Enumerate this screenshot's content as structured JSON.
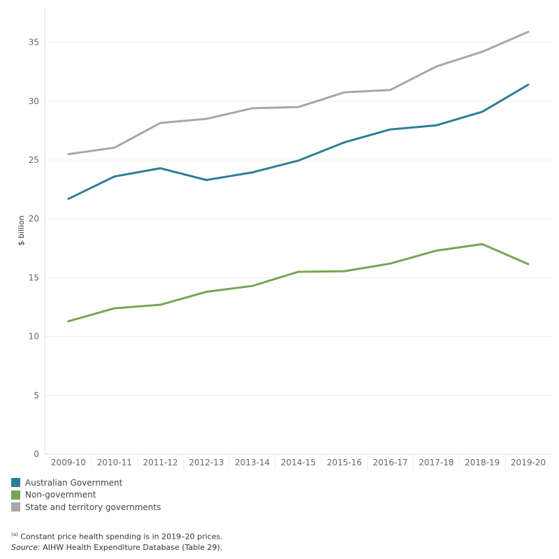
{
  "chart_data": {
    "type": "line",
    "ylabel": "$ billion",
    "xlabel": "",
    "ylim": [
      0,
      37
    ],
    "yticks": [
      0,
      5,
      10,
      15,
      20,
      25,
      30,
      35
    ],
    "grid": true,
    "legend_position": "bottom-left",
    "categories": [
      "2009-10",
      "2010-11",
      "2011-12",
      "2012-13",
      "2013-14",
      "2014-15",
      "2015-16",
      "2016-17",
      "2017-18",
      "2018-19",
      "2019-20"
    ],
    "series": [
      {
        "name": "Australian Government",
        "color": "#2e7d98",
        "values": [
          21.7,
          23.6,
          24.3,
          23.3,
          23.95,
          24.95,
          26.5,
          27.6,
          27.95,
          29.1,
          31.4
        ]
      },
      {
        "name": "Non-government",
        "color": "#76a653",
        "values": [
          11.3,
          12.4,
          12.7,
          13.8,
          14.3,
          15.5,
          15.55,
          16.2,
          17.3,
          17.85,
          16.15
        ]
      },
      {
        "name": "State and territory governments",
        "color": "#a5a7a8",
        "values": [
          25.5,
          26.05,
          28.15,
          28.5,
          29.4,
          29.5,
          30.75,
          30.95,
          32.95,
          34.2,
          35.9
        ]
      }
    ]
  },
  "footnote": {
    "marker": "(a)",
    "text": "Constant price health spending is in 2019–20 prices.",
    "source_label": "Source:",
    "source_text": "AIHW Health Expenditure Database (Table 29)."
  }
}
